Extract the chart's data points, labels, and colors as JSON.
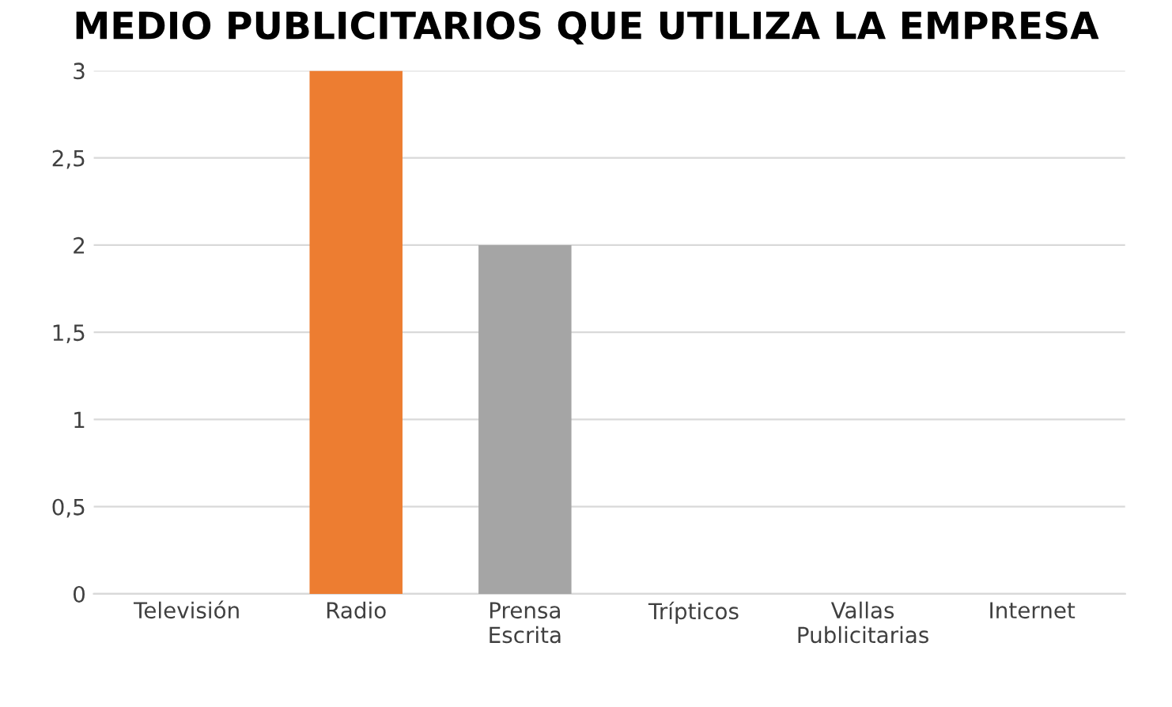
{
  "chart_data": {
    "type": "bar",
    "title": "MEDIO PUBLICITARIOS QUE UTILIZA LA EMPRESA",
    "categories": [
      "Televisión",
      "Radio",
      "Prensa\nEscrita",
      "Trípticos",
      "Vallas\nPublicitarias",
      "Internet"
    ],
    "values": [
      0,
      3,
      2,
      0,
      0,
      0
    ],
    "colors": [
      "#4a7ebb",
      "#ed7d31",
      "#a5a5a5",
      "#c9a000",
      "#2e5597",
      "#548235"
    ],
    "ylim": [
      0,
      3
    ],
    "yticks": [
      0,
      {
        "value": 0.5,
        "label": "0,5"
      },
      1,
      {
        "value": 1.5,
        "label": "1,5"
      },
      2,
      {
        "value": 2.5,
        "label": "2,5"
      },
      3
    ],
    "grid": "y"
  }
}
